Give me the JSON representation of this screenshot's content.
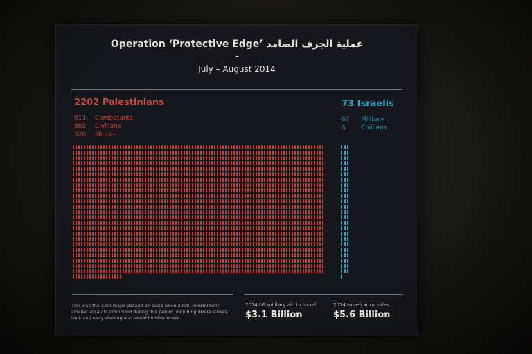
{
  "panel": {
    "title": "Operation ‘Protective Edge’ عملية الجرف الصامد",
    "title_dash": "–",
    "subtitle": "July – August 2014"
  },
  "palestinians": {
    "heading": "2202 Palestinians",
    "color": "#c8483c",
    "total": 2202,
    "breakdown": [
      {
        "count": "811",
        "label": "Combatants"
      },
      {
        "count": "865",
        "label": "Civilians"
      },
      {
        "count": "526",
        "label": "Minors"
      }
    ]
  },
  "israelis": {
    "heading": "73 Israelis",
    "color": "#2aa3c4",
    "total": 73,
    "breakdown": [
      {
        "count": "67",
        "label": "Military"
      },
      {
        "count": "6",
        "label": "Civilians"
      }
    ]
  },
  "footer": {
    "note": "This was the 13th major assault on Gaza since 2000. Intermittent smaller assaults continued during this period, including drone strikes, tank and navy shelling and aerial bombardment.",
    "aid": [
      {
        "label": "2014 US military aid to Israel",
        "value": "$3.1 Billion"
      },
      {
        "label": "2014 Israeli arms sales",
        "value": "$5.6 Billion"
      }
    ]
  }
}
